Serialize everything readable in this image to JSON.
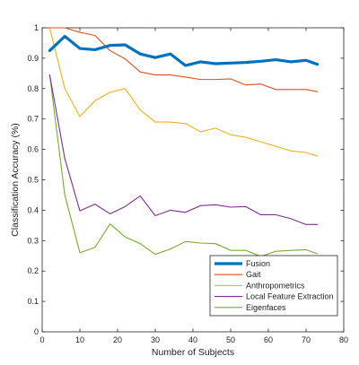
{
  "chart_data": {
    "type": "line",
    "title": "",
    "xlabel": "Number of Subjects",
    "ylabel": "Classification Accuracy (%)",
    "xlim": [
      0,
      80
    ],
    "ylim": [
      0,
      1
    ],
    "xticks": [
      0,
      10,
      20,
      30,
      40,
      50,
      60,
      70,
      80
    ],
    "yticks": [
      0,
      0.1,
      0.2,
      0.3,
      0.4,
      0.5,
      0.6,
      0.7,
      0.8,
      0.9,
      1
    ],
    "xtick_labels": [
      "0",
      "10",
      "20",
      "30",
      "40",
      "50",
      "60",
      "70",
      "80"
    ],
    "ytick_labels": [
      "0",
      "0.1",
      "0.2",
      "0.3",
      "0.4",
      "0.5",
      "0.6",
      "0.7",
      "0.8",
      "0.9",
      "1"
    ],
    "grid": false,
    "legend_position": "bottom-right",
    "x": [
      2,
      6,
      10,
      14,
      18,
      22,
      26,
      30,
      34,
      38,
      42,
      46,
      50,
      54,
      58,
      62,
      66,
      70,
      73
    ],
    "series": [
      {
        "name": "Fusion",
        "color": "#0072BD",
        "width": 3.2,
        "values": [
          0.925,
          0.972,
          0.932,
          0.928,
          0.942,
          0.944,
          0.914,
          0.902,
          0.914,
          0.876,
          0.888,
          0.882,
          0.884,
          0.886,
          0.89,
          0.895,
          0.888,
          0.893,
          0.88
        ]
      },
      {
        "name": "Gait",
        "color": "#D95319",
        "width": 1.1,
        "values": [
          1.0,
          1.0,
          0.985,
          0.975,
          0.925,
          0.898,
          0.855,
          0.845,
          0.845,
          0.838,
          0.83,
          0.83,
          0.832,
          0.812,
          0.815,
          0.797,
          0.797,
          0.797,
          0.79
        ]
      },
      {
        "name": "Anthropometrics",
        "color": "#EDB120",
        "width": 1.1,
        "values": [
          1.0,
          0.8,
          0.708,
          0.76,
          0.788,
          0.8,
          0.73,
          0.69,
          0.69,
          0.685,
          0.658,
          0.67,
          0.648,
          0.64,
          0.625,
          0.61,
          0.595,
          0.59,
          0.578
        ]
      },
      {
        "name": "Local Feature Extraction",
        "color": "#7E2F8E",
        "width": 1.1,
        "values": [
          0.845,
          0.57,
          0.398,
          0.42,
          0.388,
          0.412,
          0.447,
          0.382,
          0.4,
          0.393,
          0.415,
          0.418,
          0.41,
          0.412,
          0.385,
          0.385,
          0.372,
          0.353,
          0.353
        ]
      },
      {
        "name": "Eigenfaces",
        "color": "#77AC30",
        "width": 1.1,
        "values": [
          0.845,
          0.45,
          0.26,
          0.278,
          0.355,
          0.312,
          0.29,
          0.255,
          0.272,
          0.297,
          0.292,
          0.29,
          0.268,
          0.268,
          0.248,
          0.265,
          0.268,
          0.27,
          0.257
        ]
      }
    ]
  }
}
